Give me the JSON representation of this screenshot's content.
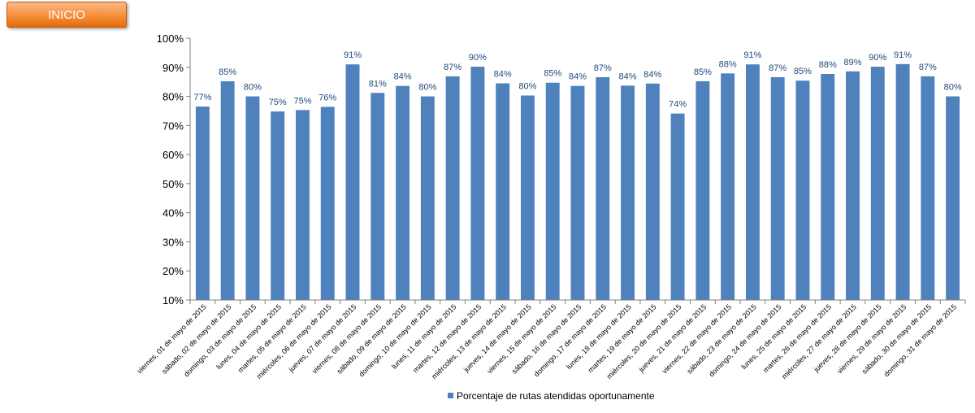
{
  "header": {
    "inicio_label": "INICIO"
  },
  "colors": {
    "bar": "#4f81bd",
    "value_label": "#1f497d",
    "axis": "#808080",
    "button": "#f79646"
  },
  "chart_data": {
    "type": "bar",
    "categories": [
      "viernes, 01 de mayo de 2015",
      "sábado, 02 de mayo de 2015",
      "domingo, 03 de mayo de 2015",
      "lunes, 04 de mayo de 2015",
      "martes, 05 de mayo de 2015",
      "miércoles, 06 de mayo de 2015",
      "jueves, 07 de mayo de 2015",
      "viernes, 08 de mayo de 2015",
      "sábado, 09 de mayo de 2015",
      "domingo, 10 de mayo de 2015",
      "lunes, 11 de mayo de 2015",
      "martes, 12 de mayo de 2015",
      "miércoles, 13 de mayo de 2015",
      "jueves, 14 de mayo de 2015",
      "viernes, 15 de mayo de 2015",
      "sábado, 16 de mayo de 2015",
      "domingo, 17 de mayo de 2015",
      "lunes, 18 de mayo de 2015",
      "martes, 19 de mayo de 2015",
      "miércoles, 20 de mayo de 2015",
      "jueves, 21 de mayo de 2015",
      "viernes, 22 de mayo de 2015",
      "sábado, 23 de mayo de 2015",
      "domingo, 24 de mayo de 2015",
      "lunes, 25 de mayo de 2015",
      "martes, 26 de mayo de 2015",
      "miércoles, 27 de mayo de 2015",
      "jueves, 28 de mayo de 2015",
      "viernes, 29 de mayo de 2015",
      "sábado, 30 de mayo de 2015",
      "domingo, 31 de mayo de 2015"
    ],
    "series": [
      {
        "name": "Porcentaje de rutas atendidas oportunamente",
        "values": [
          76.5,
          85.2,
          80.0,
          74.8,
          75.3,
          76.4,
          91.0,
          81.2,
          83.6,
          80.0,
          86.9,
          90.2,
          84.5,
          80.3,
          84.7,
          83.6,
          86.6,
          83.7,
          84.4,
          74.1,
          85.2,
          87.9,
          91.0,
          86.6,
          85.4,
          87.7,
          88.6,
          90.2,
          91.1,
          86.9,
          80.0
        ]
      }
    ],
    "value_labels": [
      "77%",
      "85%",
      "80%",
      "75%",
      "75%",
      "76%",
      "91%",
      "81%",
      "84%",
      "80%",
      "87%",
      "90%",
      "84%",
      "80%",
      "85%",
      "84%",
      "87%",
      "84%",
      "84%",
      "74%",
      "85%",
      "88%",
      "91%",
      "87%",
      "85%",
      "88%",
      "89%",
      "90%",
      "91%",
      "87%",
      "80%"
    ],
    "ylim": [
      10,
      100
    ],
    "yticks": [
      10,
      20,
      30,
      40,
      50,
      60,
      70,
      80,
      90,
      100
    ],
    "ytick_labels": [
      "10%",
      "20%",
      "30%",
      "40%",
      "50%",
      "60%",
      "70%",
      "80%",
      "90%",
      "100%"
    ],
    "grid": false,
    "legend_position": "bottom"
  }
}
